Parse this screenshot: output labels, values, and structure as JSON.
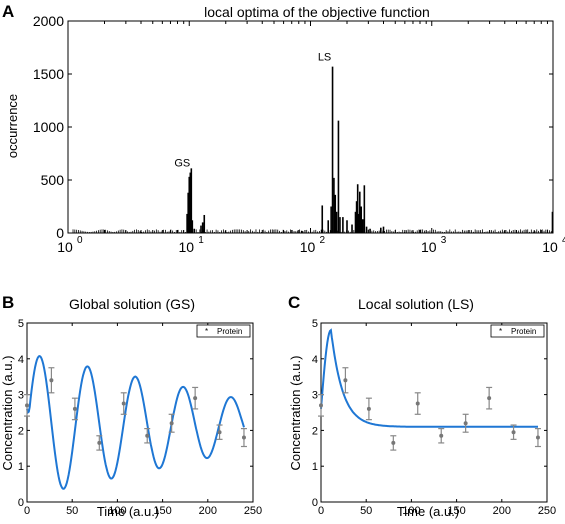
{
  "chart_data": [
    {
      "panel_letter": "A",
      "type": "bar",
      "title": "local optima of the objective function",
      "xlabel": "",
      "ylabel": "occurrence",
      "xscale": "log",
      "xlim": [
        1,
        10000
      ],
      "ylim": [
        0,
        2000
      ],
      "xticks": [
        1,
        10,
        100,
        1000,
        10000
      ],
      "yticks": [
        0,
        500,
        1000,
        1500,
        2000
      ],
      "x_tick_labels": [
        {
          "base": "10",
          "exp": "0"
        },
        {
          "base": "10",
          "exp": "1"
        },
        {
          "base": "10",
          "exp": "2"
        },
        {
          "base": "10",
          "exp": "3"
        },
        {
          "base": "10",
          "exp": "4"
        }
      ],
      "x": [
        9.6,
        9.8,
        10.0,
        10.2,
        10.4,
        10.6,
        11.0,
        12.5,
        12.9,
        13.3,
        85,
        125,
        140,
        148,
        152,
        156,
        160,
        164,
        170,
        175,
        185,
        200,
        220,
        235,
        240,
        245,
        250,
        255,
        262,
        270,
        278,
        290,
        310,
        380,
        400,
        9900
      ],
      "values": [
        180,
        380,
        530,
        570,
        610,
        120,
        40,
        70,
        100,
        170,
        20,
        260,
        120,
        250,
        1570,
        520,
        360,
        200,
        1060,
        150,
        150,
        120,
        80,
        200,
        300,
        460,
        180,
        390,
        250,
        130,
        450,
        60,
        40,
        50,
        60,
        200
      ],
      "annotations": [
        {
          "text": "GS",
          "x": 10.2,
          "y": 570
        },
        {
          "text": "LS",
          "x": 152,
          "y": 1570
        }
      ]
    },
    {
      "panel_letter": "B",
      "type": "line",
      "title": "Global solution (GS)",
      "xlabel": "Time (a.u.)",
      "ylabel": "Concentration (a.u.)",
      "xlim": [
        0,
        250
      ],
      "ylim": [
        0,
        5
      ],
      "xticks": [
        0,
        50,
        100,
        150,
        200,
        250
      ],
      "yticks": [
        0,
        1,
        2,
        3,
        4,
        5
      ],
      "line_color": "#1f77d4",
      "model": {
        "kind": "damped_oscillation",
        "start": 2.6,
        "mean": 2.15,
        "amplitude": 2.0,
        "amplitude_end": 0.65,
        "period": 53,
        "peak_time": 14
      },
      "legend": {
        "label": "Protein",
        "position": "top-right"
      },
      "points": [
        {
          "x": 0,
          "y": 2.7,
          "err": 0.3
        },
        {
          "x": 27,
          "y": 3.4,
          "err": 0.35
        },
        {
          "x": 53,
          "y": 2.6,
          "err": 0.3
        },
        {
          "x": 80,
          "y": 1.65,
          "err": 0.2
        },
        {
          "x": 107,
          "y": 2.75,
          "err": 0.3
        },
        {
          "x": 133,
          "y": 1.85,
          "err": 0.2
        },
        {
          "x": 160,
          "y": 2.2,
          "err": 0.25
        },
        {
          "x": 186,
          "y": 2.9,
          "err": 0.3
        },
        {
          "x": 213,
          "y": 1.95,
          "err": 0.2
        },
        {
          "x": 240,
          "y": 1.8,
          "err": 0.25
        }
      ]
    },
    {
      "panel_letter": "C",
      "type": "line",
      "title": "Local solution (LS)",
      "xlabel": "Time (a.u.)",
      "ylabel": "Concentration (a.u.)",
      "xlim": [
        0,
        250
      ],
      "ylim": [
        0,
        5
      ],
      "xticks": [
        0,
        50,
        100,
        150,
        200,
        250
      ],
      "yticks": [
        0,
        1,
        2,
        3,
        4,
        5
      ],
      "line_color": "#1f77d4",
      "model": {
        "kind": "transient_peak",
        "start": 2.6,
        "peak": 4.8,
        "peak_time": 11,
        "steady": 2.1,
        "decay": 13
      },
      "legend": {
        "label": "Protein",
        "position": "top-right"
      },
      "points": [
        {
          "x": 0,
          "y": 2.7,
          "err": 0.3
        },
        {
          "x": 27,
          "y": 3.4,
          "err": 0.35
        },
        {
          "x": 53,
          "y": 2.6,
          "err": 0.3
        },
        {
          "x": 80,
          "y": 1.65,
          "err": 0.2
        },
        {
          "x": 107,
          "y": 2.75,
          "err": 0.3
        },
        {
          "x": 133,
          "y": 1.85,
          "err": 0.2
        },
        {
          "x": 160,
          "y": 2.2,
          "err": 0.25
        },
        {
          "x": 186,
          "y": 2.9,
          "err": 0.3
        },
        {
          "x": 213,
          "y": 1.95,
          "err": 0.2
        },
        {
          "x": 240,
          "y": 1.8,
          "err": 0.25
        }
      ]
    }
  ]
}
